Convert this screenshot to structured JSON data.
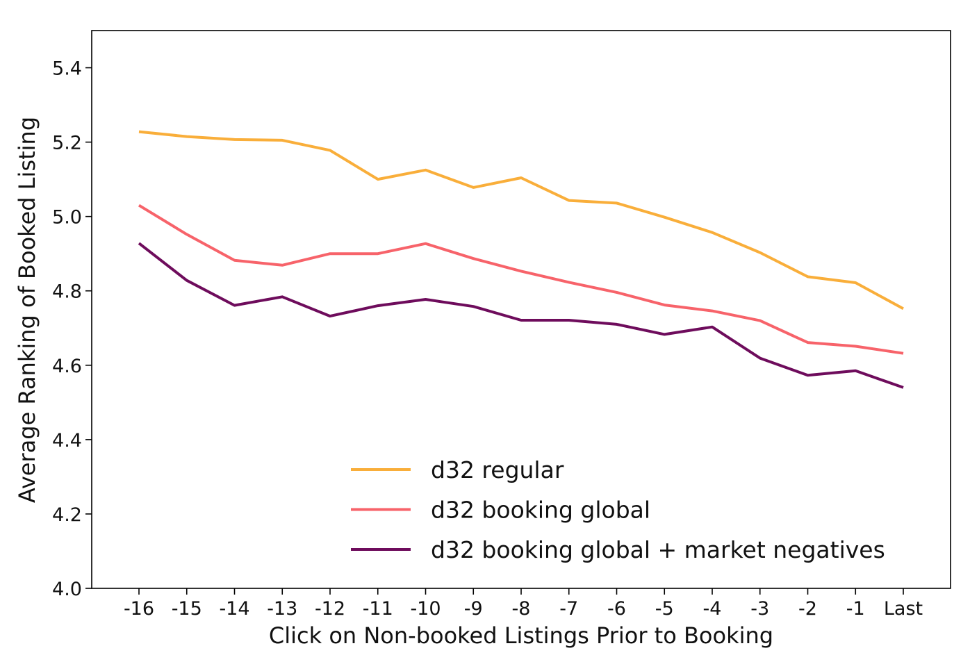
{
  "chart_data": {
    "type": "line",
    "title": "",
    "xlabel": "Click on Non-booked Listings Prior to Booking",
    "ylabel": "Average Ranking of Booked Listing",
    "categories": [
      "-16",
      "-15",
      "-14",
      "-13",
      "-12",
      "-11",
      "-10",
      "-9",
      "-8",
      "-7",
      "-6",
      "-5",
      "-4",
      "-3",
      "-2",
      "-1",
      "Last"
    ],
    "yticks": [
      "4.0",
      "4.2",
      "4.4",
      "4.6",
      "4.8",
      "5.0",
      "5.2",
      "5.4"
    ],
    "ylim": [
      4.0,
      5.5
    ],
    "grid": false,
    "legend_position": "lower-center",
    "series": [
      {
        "name": "d32 regular",
        "color": "#F9AE3A",
        "values": [
          5.228,
          5.215,
          5.207,
          5.205,
          5.178,
          5.1,
          5.125,
          5.078,
          5.104,
          5.043,
          5.036,
          4.998,
          4.957,
          4.903,
          4.838,
          4.822,
          4.752
        ]
      },
      {
        "name": "d32 booking global",
        "color": "#F7636A",
        "values": [
          5.03,
          4.952,
          4.882,
          4.869,
          4.9,
          4.9,
          4.927,
          4.887,
          4.853,
          4.823,
          4.796,
          4.762,
          4.746,
          4.72,
          4.661,
          4.651,
          4.632
        ]
      },
      {
        "name": "d32 booking global + market negatives",
        "color": "#6E0C5C",
        "values": [
          4.928,
          4.828,
          4.761,
          4.784,
          4.732,
          4.76,
          4.777,
          4.758,
          4.721,
          4.721,
          4.71,
          4.683,
          4.703,
          4.619,
          4.573,
          4.585,
          4.54
        ]
      }
    ]
  }
}
